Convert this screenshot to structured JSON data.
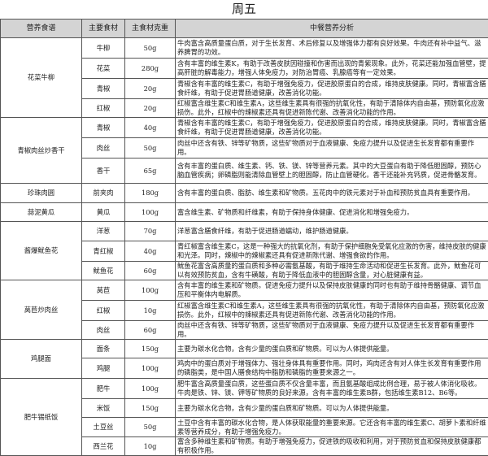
{
  "title": "周五",
  "headers": [
    "营养食谱",
    "主要食材",
    "主食材克重",
    "中餐营养分析"
  ],
  "meals": [
    {
      "name": "花菜牛柳",
      "items": [
        {
          "ingredient": "牛柳",
          "weight": "50g",
          "analysis": "牛肉富含高质量蛋白质，对于生长发育、术后修复以及增强体力都有良好效果。牛肉还有补中益气、滋养脾胃的功效。"
        },
        {
          "ingredient": "花菜",
          "weight": "280g",
          "analysis": "含有丰富的维生素K，有助于改善皮肤因碰撞和伤害而出现的青紫现象。此外，花菜还能加强血管壁，提高肝脏的解毒能力，增强人体免疫力，对防治胃癌、乳腺癌等有一定效果。"
        },
        {
          "ingredient": "青椒",
          "weight": "20g",
          "analysis": "青椒含有丰富的维生素C，有助于增强免疫力，促进胶原蛋白的合成，维持皮肤健康。同时，青椒富含膳食纤维，有助于促进胃肠道健康，改善消化功能。"
        },
        {
          "ingredient": "红椒",
          "weight": "20g",
          "analysis": "红椒富含维生素C和维生素A，这些维生素具有很强的抗氧化性，有助于清除体内自由基，预防氧化应激损伤。此外，红椒中的辣椒素还具有促进新陈代谢、改善消化功能的作用。"
        }
      ]
    },
    {
      "name": "青椒肉丝炒香干",
      "items": [
        {
          "ingredient": "青椒",
          "weight": "40g",
          "analysis": "青椒含有丰富的维生素C，有助于增强免疫力，促进胶原蛋白的合成，维持皮肤健康。同时，青椒富含膳食纤维，有助于促进胃肠道健康，改善消化功能。"
        },
        {
          "ingredient": "肉丝",
          "weight": "50g",
          "analysis": "肉丝中还含有铁、锌等矿物质，这些矿物质对于血液健康、免疫力提升以及促进生长发育都有重要作用。"
        },
        {
          "ingredient": "香干",
          "weight": "65g",
          "analysis": "含有丰富的蛋白质、维生素、钙、铁、镁、锌等营养元素。其中的大豆蛋白有助于降低胆固醇，预防心脑血管疾病；卵磷脂则能清除血管壁上的胆固醇，防止血管硬化。香干还能补充钙质，促进骨骼发育。"
        }
      ]
    },
    {
      "name": "珍珠肉圆",
      "items": [
        {
          "ingredient": "前夹肉",
          "weight": "180g",
          "analysis": "含有丰富的蛋白质、脂肪、维生素和矿物质。五花肉中的铁元素对于补血和预防贫血具有重要作用。"
        }
      ]
    },
    {
      "name": "蒜泥黄瓜",
      "items": [
        {
          "ingredient": "黄瓜",
          "weight": "100g",
          "analysis": "富含维生素、矿物质和纤维素，有助于保持身体健康、促进消化和增强免疫力。"
        }
      ]
    },
    {
      "name": "酱爆鱿鱼花",
      "items": [
        {
          "ingredient": "洋葱",
          "weight": "70g",
          "analysis": "洋葱富含膳食纤维，有助于促进肠道蠕动，维护肠道健康。"
        },
        {
          "ingredient": "青红椒",
          "weight": "40g",
          "analysis": "青红椒富含维生素C，这是一种强大的抗氧化剂，有助于保护细胞免受氧化应激的伤害，维持皮肤的健康和光泽。同时，辣椒中的辣椒素还具有促进新陈代谢、增强食欲的作用。"
        },
        {
          "ingredient": "鱿鱼花",
          "weight": "60g",
          "analysis": "鱿鱼花富含高质量的蛋白质和多种必需氨基酸，有助于维持生命活动和促进生长发育。此外，鱿鱼花可以有效预防贫血，含有牛磺酸，有助于降低血液中的胆固醇含量，对心脏健康有益。"
        }
      ]
    },
    {
      "name": "莴苣炒肉丝",
      "items": [
        {
          "ingredient": "莴苣",
          "weight": "100g",
          "analysis": "含有丰富的维生素和矿物质。促进免疫力提升以及保持皮肤健康的同时也有助于维持骨骼健康、调节血压和平衡体内电解质。"
        },
        {
          "ingredient": "红椒",
          "weight": "10g",
          "analysis": "红椒富含维生素C和维生素A，这些维生素具有很强的抗氧化性，有助于清除体内自由基，预防氧化应激损伤。此外，红椒中的辣椒素还具有促进新陈代谢、改善消化功能的作用。"
        },
        {
          "ingredient": "肉丝",
          "weight": "60g",
          "analysis": "肉丝中还含有铁、锌等矿物质，这些矿物质对于血液健康、免疫力提升以及促进生长发育都有重要作用。"
        }
      ]
    },
    {
      "name": "鸡腿面",
      "items": [
        {
          "ingredient": "面条",
          "weight": "150g",
          "analysis": "主要为碳水化合物，含有少量的蛋白质和矿物质。可以为人体提供能量。"
        },
        {
          "ingredient": "鸡腿",
          "weight": "100g",
          "analysis": "鸡肉中的蛋白质对于增强体力、强壮身体具有重要作用。同时，鸡肉还含有对人体生长发育有重要作用的磷脂类，是中国人膳食结构中脂肪和磷脂的重要来源之一。"
        }
      ]
    },
    {
      "name": "肥牛锡纸饭",
      "items": [
        {
          "ingredient": "肥牛",
          "weight": "100g",
          "analysis": "肥牛富含高质量蛋白质，这些蛋白质不仅含量丰富，而且氨基酸组成比例合理，易于被人体消化吸收。牛肉是铁、锌、镁、钾等矿物质的良好来源，含有丰富的维生素B群，包括维生素B12、B6等。"
        },
        {
          "ingredient": "米饭",
          "weight": "150g",
          "analysis": "主要为碳水化合物，含有少量的蛋白质和矿物质。可以为人体提供能量。"
        },
        {
          "ingredient": "土豆丝",
          "weight": "50g",
          "analysis": "土豆中含有丰富的碳水化合物，是人体获取能量的重要来源。它还含有丰富的维生素C、胡萝卜素和纤维素等营养成分，有助于增强免疫力。"
        },
        {
          "ingredient": "西兰花",
          "weight": "10g",
          "analysis": "富含多种维生素和矿物质。有助于增强免疫力，促进铁的吸收和利用，对于预防贫血和保持皮肤健康都有积极作用。"
        }
      ]
    }
  ]
}
